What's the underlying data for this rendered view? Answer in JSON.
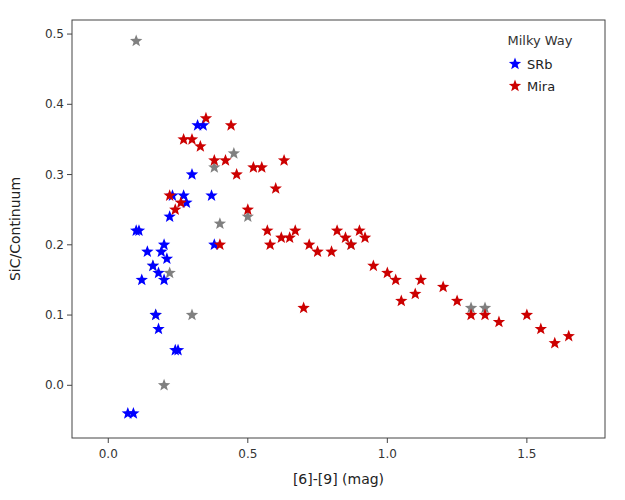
{
  "chart_data": {
    "type": "scatter",
    "title": "Milky Way",
    "x_label": "[6]-[9] (mag)",
    "y_label": "SiC/Continuum",
    "xlim": [
      -0.13,
      1.78
    ],
    "ylim": [
      -0.075,
      0.52
    ],
    "xticks": [
      {
        "value": 0.0,
        "label": "0.0"
      },
      0.5,
      {
        "value": 1.0,
        "label": "1.0"
      },
      1.5
    ],
    "yticks": [
      {
        "value": 0.0,
        "label": "0.0"
      },
      0.1,
      0.2,
      0.3,
      0.4,
      0.5
    ],
    "grid": false,
    "legend": "upper right",
    "series": [
      {
        "color": "#808080",
        "marker": "star",
        "x": [
          0.1,
          0.16,
          0.17,
          0.2,
          0.22,
          0.3,
          0.38,
          0.4,
          0.45,
          0.5,
          0.87,
          1.3,
          1.35
        ],
        "values": [
          0.49,
          0.17,
          0.1,
          0.0,
          0.16,
          0.1,
          0.31,
          0.23,
          0.33,
          0.24,
          0.2,
          0.11,
          0.11
        ]
      },
      {
        "name": "SRb",
        "color": "#0000FF",
        "marker": "star",
        "x": [
          0.07,
          0.09,
          0.1,
          0.11,
          0.12,
          0.14,
          0.16,
          0.17,
          0.18,
          0.18,
          0.19,
          0.2,
          0.2,
          0.21,
          0.22,
          0.23,
          0.24,
          0.25,
          0.27,
          0.28,
          0.3,
          0.32,
          0.34,
          0.37,
          0.38
        ],
        "values": [
          -0.04,
          -0.04,
          0.22,
          0.22,
          0.15,
          0.19,
          0.17,
          0.1,
          0.08,
          0.16,
          0.19,
          0.15,
          0.2,
          0.18,
          0.24,
          0.27,
          0.05,
          0.05,
          0.27,
          0.26,
          0.3,
          0.37,
          0.37,
          0.27,
          0.2
        ]
      },
      {
        "name": "Mira",
        "color": "#CC0000",
        "marker": "star",
        "x": [
          0.22,
          0.24,
          0.26,
          0.27,
          0.3,
          0.33,
          0.35,
          0.38,
          0.4,
          0.42,
          0.44,
          0.46,
          0.5,
          0.52,
          0.55,
          0.57,
          0.58,
          0.6,
          0.62,
          0.63,
          0.65,
          0.67,
          0.7,
          0.72,
          0.75,
          0.8,
          0.82,
          0.85,
          0.87,
          0.9,
          0.92,
          0.95,
          1.0,
          1.03,
          1.05,
          1.1,
          1.12,
          1.2,
          1.25,
          1.3,
          1.35,
          1.4,
          1.5,
          1.55,
          1.6,
          1.65
        ],
        "values": [
          0.27,
          0.25,
          0.26,
          0.35,
          0.35,
          0.34,
          0.38,
          0.32,
          0.2,
          0.32,
          0.37,
          0.3,
          0.25,
          0.31,
          0.31,
          0.22,
          0.2,
          0.28,
          0.21,
          0.32,
          0.21,
          0.22,
          0.11,
          0.2,
          0.19,
          0.19,
          0.22,
          0.21,
          0.2,
          0.22,
          0.21,
          0.17,
          0.16,
          0.15,
          0.12,
          0.13,
          0.15,
          0.14,
          0.12,
          0.1,
          0.1,
          0.09,
          0.1,
          0.08,
          0.06,
          0.07
        ]
      }
    ]
  }
}
